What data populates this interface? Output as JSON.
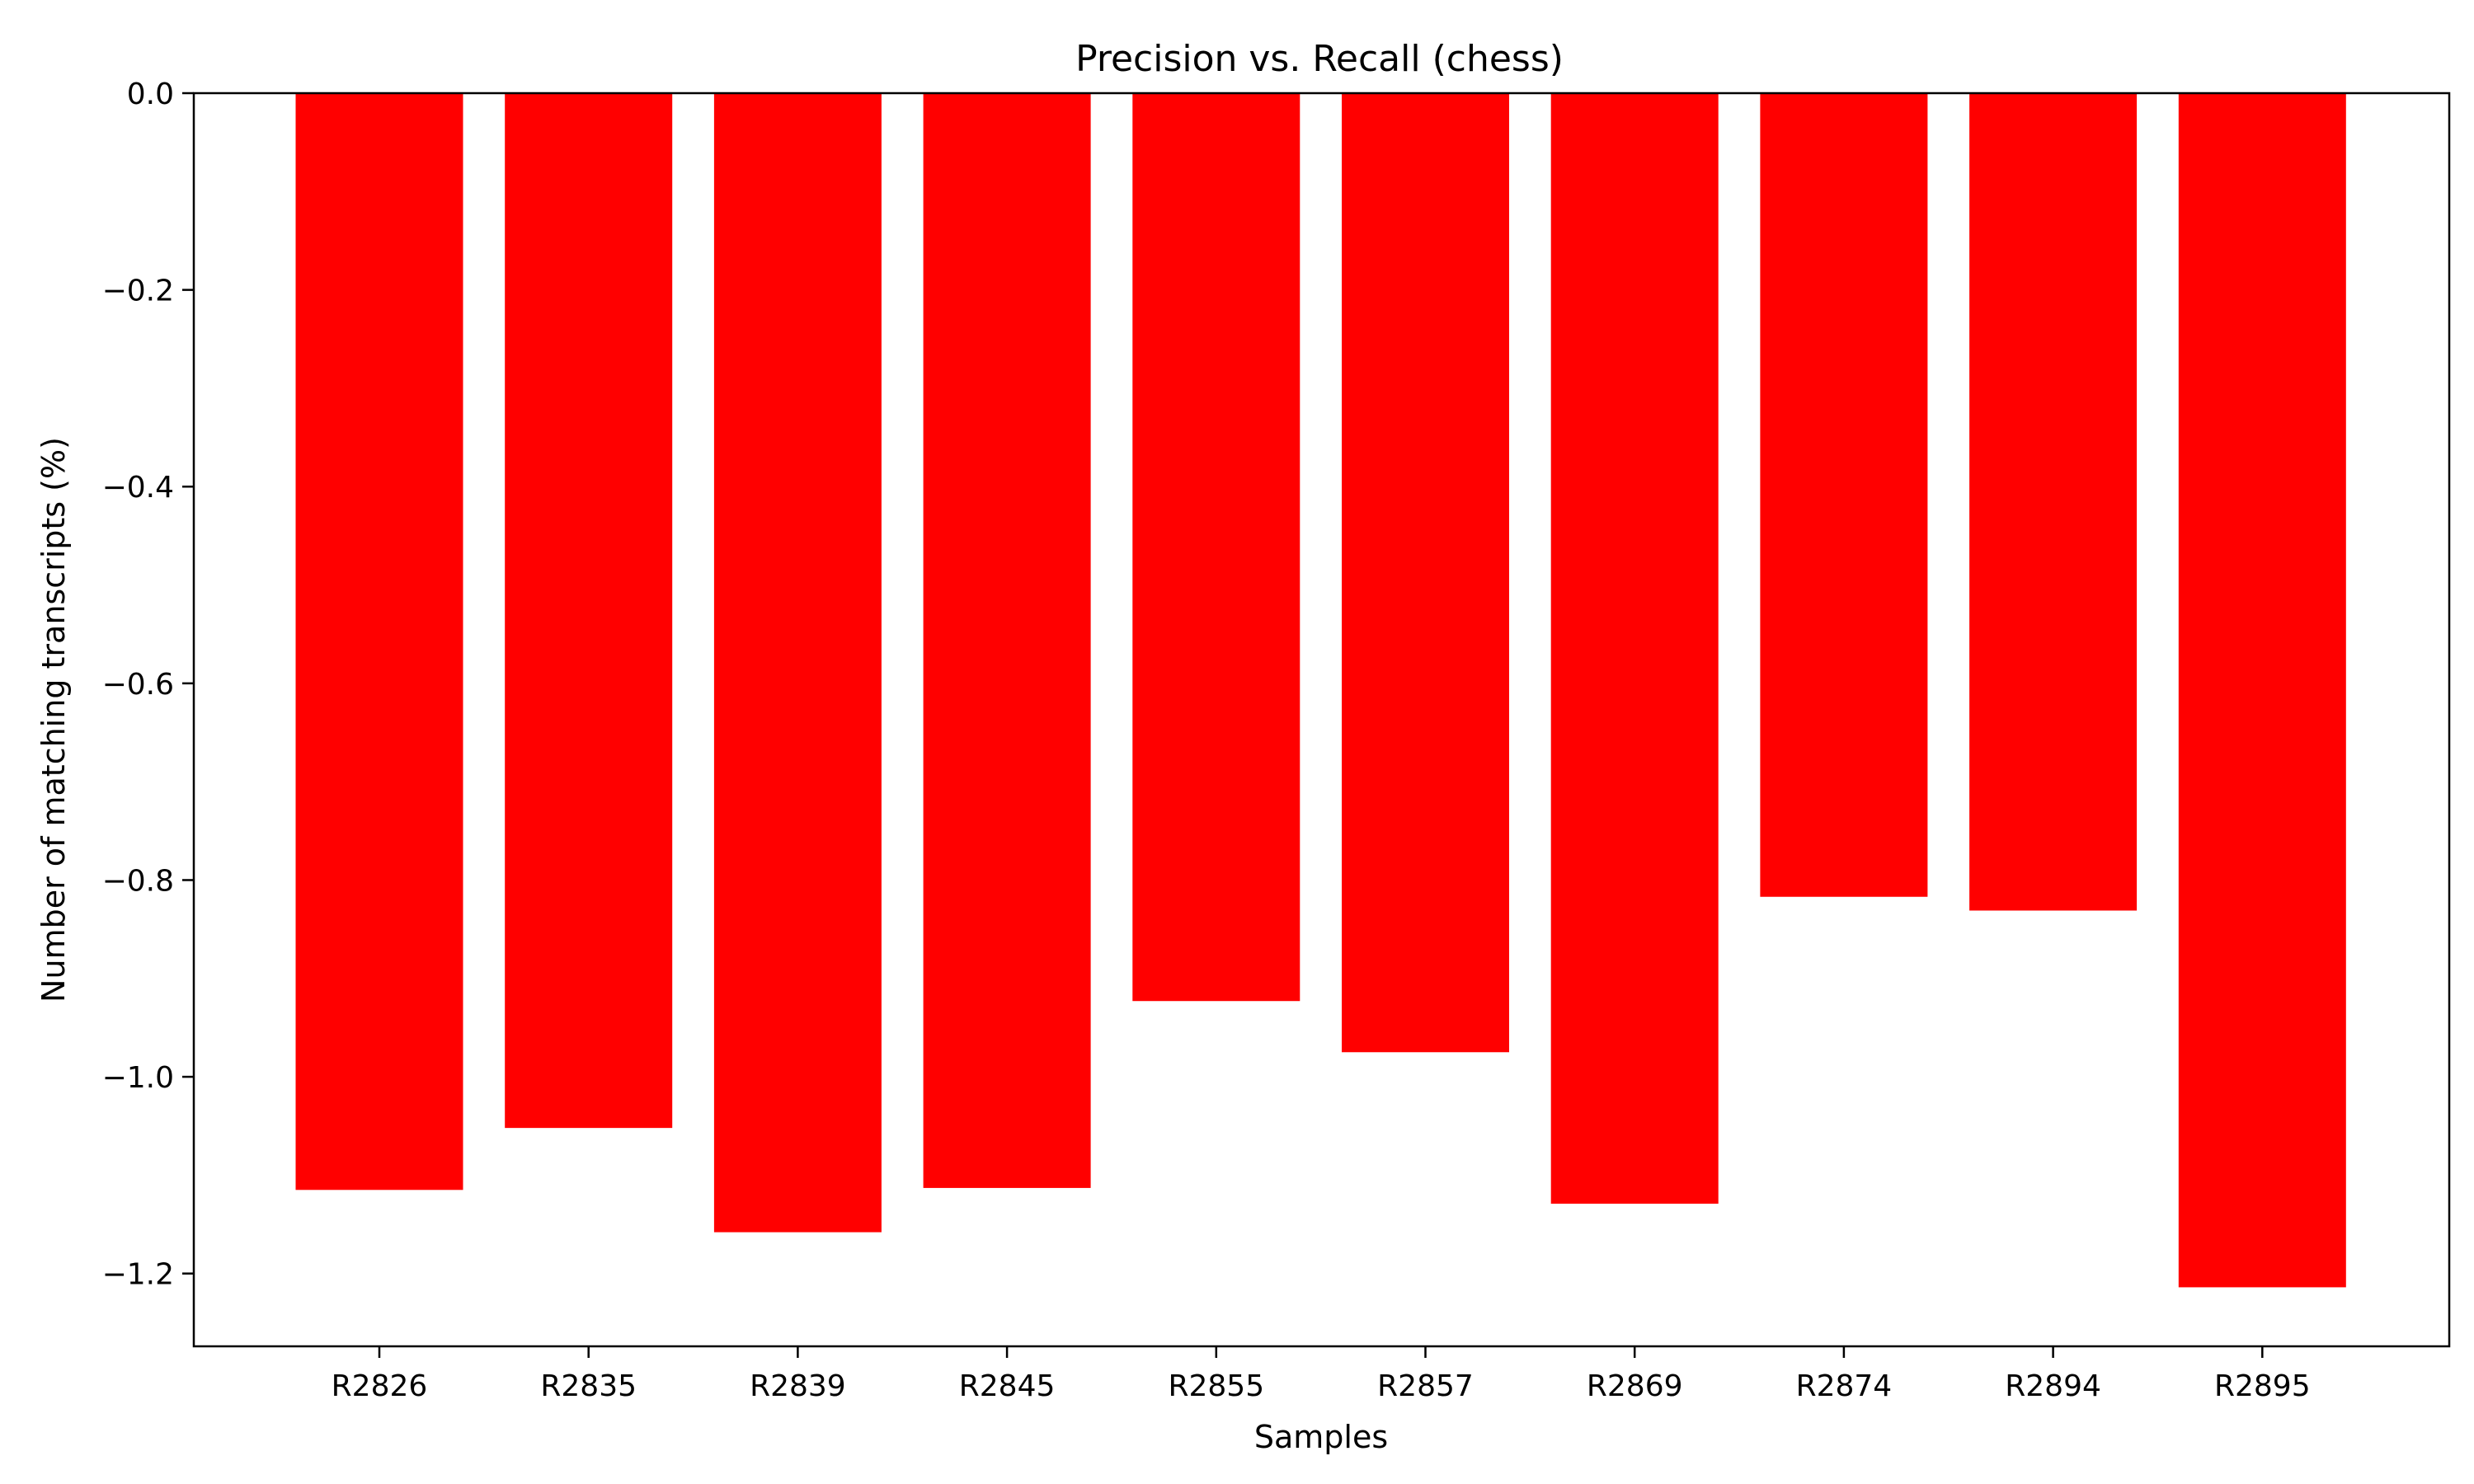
{
  "chart_data": {
    "type": "bar",
    "title": "Precision vs. Recall (chess)",
    "xlabel": "Samples",
    "ylabel": "Number of matching transcripts (%)",
    "categories": [
      "R2826",
      "R2835",
      "R2839",
      "R2845",
      "R2855",
      "R2857",
      "R2869",
      "R2874",
      "R2894",
      "R2895"
    ],
    "values": [
      -1.115,
      -1.052,
      -1.158,
      -1.113,
      -0.923,
      -0.975,
      -1.129,
      -0.817,
      -0.831,
      -1.214
    ],
    "ylim": [
      -1.274,
      0.0
    ],
    "yticks": [
      0.0,
      -0.2,
      -0.4,
      -0.6,
      -0.8,
      -1.0,
      -1.2
    ],
    "ytick_labels": [
      "0.0",
      "−0.2",
      "−0.4",
      "−0.6",
      "−0.8",
      "−1.0",
      "−1.2"
    ],
    "grid": false,
    "bar_color": "#ff0000"
  }
}
